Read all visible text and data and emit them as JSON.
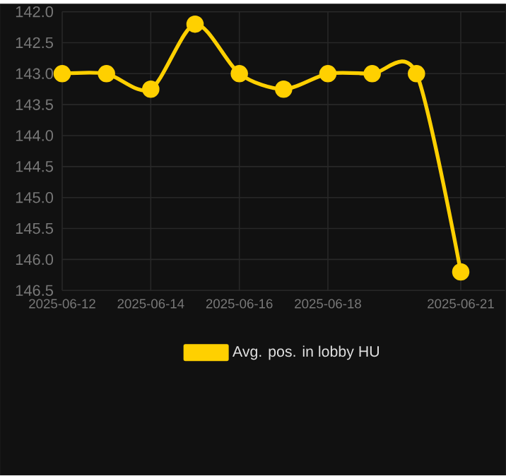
{
  "chart_data": {
    "type": "line",
    "x": [
      "2025-06-12",
      "2025-06-13",
      "2025-06-14",
      "2025-06-15",
      "2025-06-16",
      "2025-06-17",
      "2025-06-18",
      "2025-06-19",
      "2025-06-20",
      "2025-06-21"
    ],
    "series": [
      {
        "name": "Avg. pos. in lobby HU",
        "color": "#ffd000",
        "values": [
          143.0,
          143.0,
          143.25,
          142.2,
          143.0,
          143.25,
          143.0,
          143.0,
          143.0,
          146.2
        ]
      }
    ],
    "xlim": [
      "2025-06-12",
      "2025-06-22"
    ],
    "xticks": [
      "2025-06-12",
      "2025-06-14",
      "2025-06-16",
      "2025-06-18",
      "2025-06-21"
    ],
    "ylim": [
      146.5,
      142.0
    ],
    "yticks": [
      {
        "value": 142.0,
        "label": "142.0"
      },
      {
        "value": 142.5,
        "label": "142.5"
      },
      {
        "value": 143.0,
        "label": "143.0"
      },
      {
        "value": 143.5,
        "label": "143.5"
      },
      {
        "value": 144.0,
        "label": "144.0"
      },
      {
        "value": 144.5,
        "label": "144.5"
      },
      {
        "value": 145.0,
        "label": "145.0"
      },
      {
        "value": 145.5,
        "label": "145.5"
      },
      {
        "value": 146.0,
        "label": "146.0"
      },
      {
        "value": 146.5,
        "label": "146.5"
      }
    ],
    "grid": true,
    "legend": "bottom",
    "marker": "circle",
    "line_style": "solid"
  }
}
